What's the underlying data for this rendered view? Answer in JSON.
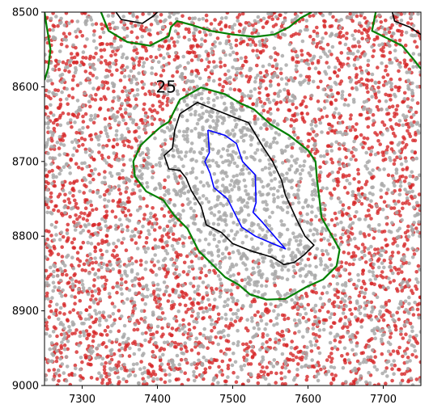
{
  "chart_data": {
    "type": "scatter",
    "title": "",
    "xlabel": "",
    "ylabel": "",
    "xlim": [
      7250,
      7750
    ],
    "ylim": [
      9000,
      8500
    ],
    "y_inverted": true,
    "xticks": [
      7300,
      7400,
      7500,
      7600,
      7700
    ],
    "yticks": [
      8500,
      8600,
      8700,
      8800,
      8900,
      9000
    ],
    "grid": false,
    "legend": "none",
    "point_colors": {
      "red": "#d62728",
      "gray": "#a9a9a9"
    },
    "point_density_per_1000x1000": {
      "red": 13000,
      "gray": 9000
    },
    "annotations": [
      {
        "text": "25",
        "x": 7400,
        "y": 8600
      }
    ],
    "contours": [
      {
        "color": "#0000ff",
        "points": [
          [
            7467,
            8658
          ],
          [
            7490,
            8665
          ],
          [
            7505,
            8676
          ],
          [
            7513,
            8700
          ],
          [
            7530,
            8718
          ],
          [
            7531,
            8755
          ],
          [
            7527,
            8768
          ],
          [
            7540,
            8782
          ],
          [
            7558,
            8803
          ],
          [
            7570,
            8817
          ],
          [
            7553,
            8810
          ],
          [
            7530,
            8800
          ],
          [
            7512,
            8788
          ],
          [
            7504,
            8772
          ],
          [
            7497,
            8758
          ],
          [
            7493,
            8750
          ],
          [
            7475,
            8735
          ],
          [
            7470,
            8716
          ],
          [
            7463,
            8700
          ],
          [
            7469,
            8688
          ],
          [
            7467,
            8658
          ]
        ]
      },
      {
        "color": "#000000",
        "points": [
          [
            7430,
            8636
          ],
          [
            7453,
            8621
          ],
          [
            7475,
            8630
          ],
          [
            7500,
            8640
          ],
          [
            7521,
            8648
          ],
          [
            7540,
            8680
          ],
          [
            7553,
            8700
          ],
          [
            7565,
            8725
          ],
          [
            7570,
            8745
          ],
          [
            7586,
            8780
          ],
          [
            7596,
            8800
          ],
          [
            7608,
            8812
          ],
          [
            7595,
            8825
          ],
          [
            7582,
            8835
          ],
          [
            7568,
            8838
          ],
          [
            7552,
            8828
          ],
          [
            7525,
            8820
          ],
          [
            7500,
            8810
          ],
          [
            7485,
            8795
          ],
          [
            7465,
            8785
          ],
          [
            7458,
            8760
          ],
          [
            7445,
            8739
          ],
          [
            7438,
            8722
          ],
          [
            7430,
            8712
          ],
          [
            7415,
            8710
          ],
          [
            7409,
            8692
          ],
          [
            7420,
            8682
          ],
          [
            7423,
            8658
          ],
          [
            7430,
            8636
          ]
        ]
      },
      {
        "color": "#008000",
        "points": [
          [
            7415,
            8647
          ],
          [
            7430,
            8617
          ],
          [
            7458,
            8601
          ],
          [
            7490,
            8610
          ],
          [
            7510,
            8622
          ],
          [
            7528,
            8630
          ],
          [
            7550,
            8650
          ],
          [
            7575,
            8665
          ],
          [
            7600,
            8685
          ],
          [
            7610,
            8700
          ],
          [
            7612,
            8725
          ],
          [
            7615,
            8748
          ],
          [
            7618,
            8775
          ],
          [
            7632,
            8800
          ],
          [
            7642,
            8818
          ],
          [
            7638,
            8840
          ],
          [
            7620,
            8858
          ],
          [
            7598,
            8868
          ],
          [
            7570,
            8884
          ],
          [
            7545,
            8885
          ],
          [
            7523,
            8878
          ],
          [
            7508,
            8865
          ],
          [
            7490,
            8855
          ],
          [
            7470,
            8835
          ],
          [
            7455,
            8820
          ],
          [
            7440,
            8790
          ],
          [
            7422,
            8772
          ],
          [
            7408,
            8752
          ],
          [
            7385,
            8740
          ],
          [
            7370,
            8720
          ],
          [
            7368,
            8700
          ],
          [
            7378,
            8678
          ],
          [
            7395,
            8662
          ],
          [
            7405,
            8653
          ],
          [
            7415,
            8647
          ]
        ]
      },
      {
        "color": "#008000",
        "points": [
          [
            7250,
            8591
          ],
          [
            7255,
            8575
          ],
          [
            7258,
            8550
          ],
          [
            7253,
            8520
          ],
          [
            7250,
            8500
          ]
        ]
      },
      {
        "color": "#008000",
        "points": [
          [
            7325,
            8500
          ],
          [
            7335,
            8525
          ],
          [
            7360,
            8540
          ],
          [
            7390,
            8545
          ],
          [
            7415,
            8532
          ],
          [
            7418,
            8520
          ],
          [
            7426,
            8512
          ],
          [
            7445,
            8517
          ],
          [
            7470,
            8525
          ],
          [
            7500,
            8530
          ],
          [
            7530,
            8533
          ],
          [
            7555,
            8530
          ],
          [
            7575,
            8520
          ],
          [
            7590,
            8508
          ],
          [
            7605,
            8500
          ]
        ]
      },
      {
        "color": "#008000",
        "points": [
          [
            7690,
            8500
          ],
          [
            7685,
            8525
          ],
          [
            7705,
            8535
          ],
          [
            7725,
            8545
          ],
          [
            7740,
            8563
          ],
          [
            7750,
            8576
          ]
        ]
      },
      {
        "color": "#000000",
        "points": [
          [
            7345,
            8500
          ],
          [
            7352,
            8510
          ],
          [
            7380,
            8515
          ],
          [
            7395,
            8505
          ],
          [
            7400,
            8500
          ]
        ]
      },
      {
        "color": "#000000",
        "points": [
          [
            7712,
            8500
          ],
          [
            7715,
            8512
          ],
          [
            7735,
            8520
          ],
          [
            7750,
            8530
          ]
        ]
      }
    ]
  }
}
